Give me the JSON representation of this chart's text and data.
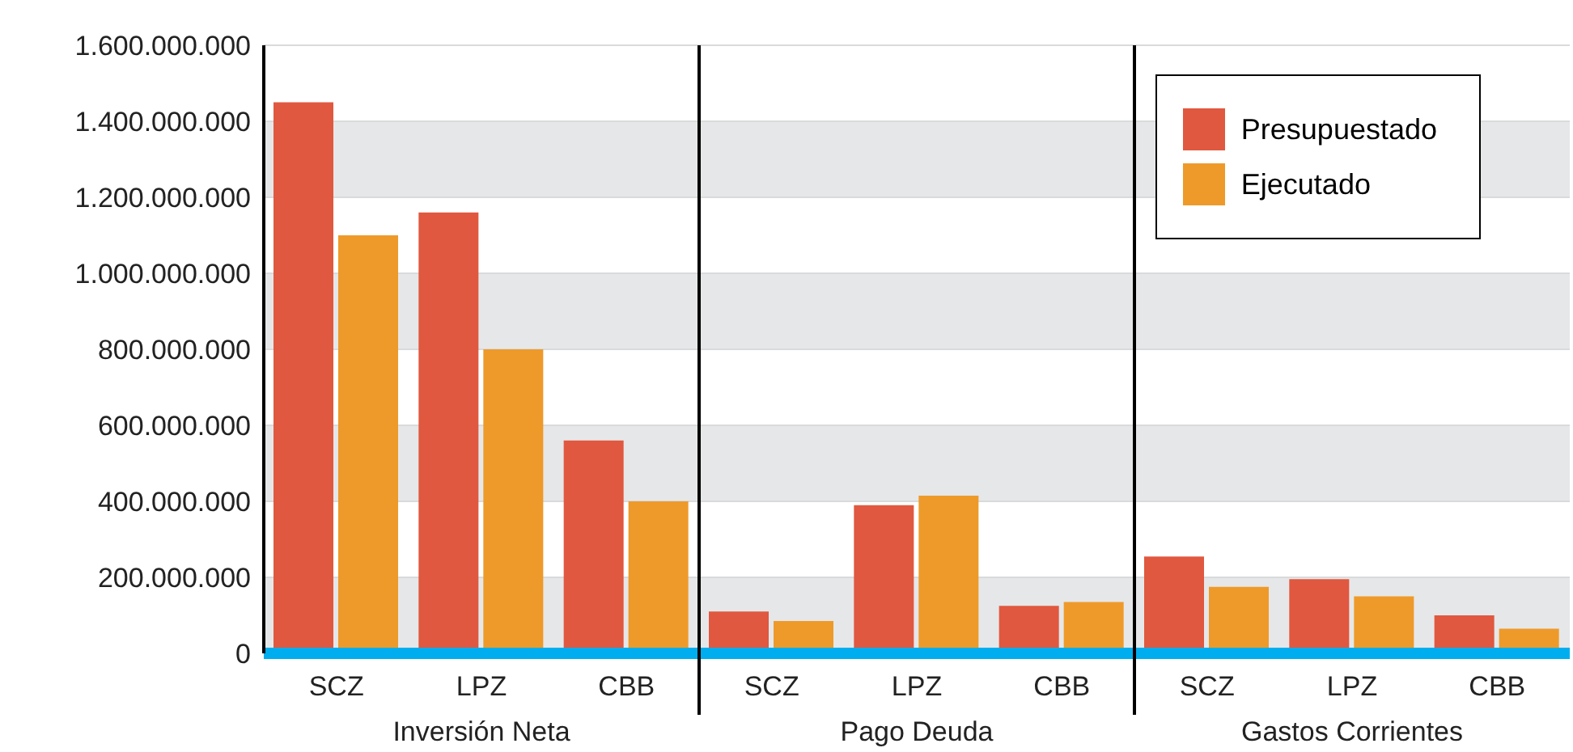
{
  "chart_data": {
    "type": "bar",
    "categories": [
      "SCZ",
      "LPZ",
      "CBB",
      "SCZ",
      "LPZ",
      "CBB",
      "SCZ",
      "LPZ",
      "CBB"
    ],
    "series": [
      {
        "name": "Presupuestado",
        "color": "#e0583f",
        "values": [
          1450000000,
          1160000000,
          560000000,
          110000000,
          390000000,
          125000000,
          255000000,
          195000000,
          100000000
        ]
      },
      {
        "name": "Ejecutado",
        "color": "#ee9a2a",
        "values": [
          1100000000,
          800000000,
          400000000,
          85000000,
          415000000,
          135000000,
          175000000,
          150000000,
          65000000
        ]
      }
    ],
    "ylim": [
      0,
      1600000000
    ],
    "yticks": [
      0,
      {
        "value": 200000000,
        "label": "200.000.000"
      },
      {
        "value": 400000000,
        "label": "400.000.000"
      },
      {
        "value": 600000000,
        "label": "600.000.000"
      },
      {
        "value": 800000000,
        "label": "800.000.000"
      },
      {
        "value": 1000000000,
        "label": "1.000.000.000"
      },
      {
        "value": 1200000000,
        "label": "1.200.000.000"
      },
      {
        "value": 1400000000,
        "label": "1.400.000.000"
      },
      {
        "value": 1600000000,
        "label": "1.600.000.000"
      }
    ],
    "annotations": [
      "Inversión Neta",
      "Pago Deuda",
      "Gastos Corrientes"
    ],
    "grid": "y",
    "legend": "top right"
  }
}
